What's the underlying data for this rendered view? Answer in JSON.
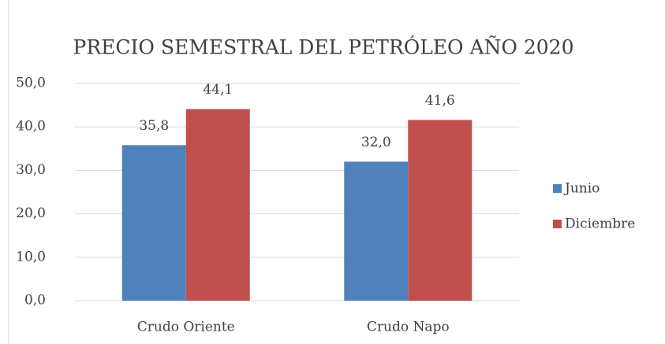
{
  "chart_data": {
    "type": "bar",
    "title": "PRECIO SEMESTRAL DEL PETRÓLEO AÑO 2020",
    "categories": [
      "Crudo Oriente",
      "Crudo Napo"
    ],
    "series": [
      {
        "name": "Junio",
        "color": "#4f81bd",
        "values": [
          35.8,
          32.0
        ],
        "value_labels": [
          "35,8",
          "32,0"
        ]
      },
      {
        "name": "Diciembre",
        "color": "#c0504d",
        "values": [
          44.1,
          41.6
        ],
        "value_labels": [
          "44,1",
          "41,6"
        ]
      }
    ],
    "ylim": [
      0,
      50
    ],
    "yticks": [
      {
        "value": 0,
        "label": "0,0"
      },
      {
        "value": 10,
        "label": "10,0"
      },
      {
        "value": 20,
        "label": "20,0"
      },
      {
        "value": 30,
        "label": "30,0"
      },
      {
        "value": 40,
        "label": "40,0"
      },
      {
        "value": 50,
        "label": "50,0"
      }
    ],
    "grid": true,
    "legend": "right"
  }
}
